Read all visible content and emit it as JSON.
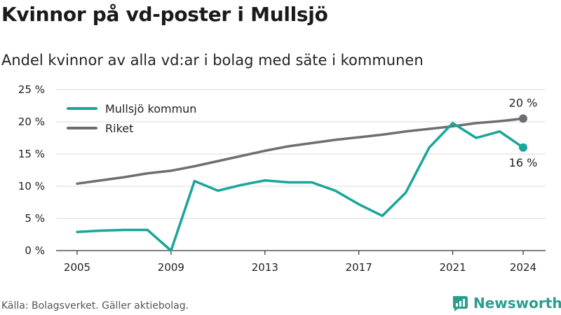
{
  "title": "Kvinnor på vd-poster i Mullsjö",
  "subtitle": "Andel kvinnor av alla vd:ar i bolag med säte i kommunen",
  "source": "Källa: Bolagsverket. Gäller aktiebolag.",
  "brand": {
    "name": "Newsworthy",
    "icon": "newsworthy-logo-icon"
  },
  "colors": {
    "mullsjo": "#18a59b",
    "riket": "#6e6d73",
    "grid": "#d9d9d9",
    "axis": "#333333"
  },
  "chart_data": {
    "type": "line",
    "x": [
      2005,
      2006,
      2007,
      2008,
      2009,
      2010,
      2011,
      2012,
      2013,
      2014,
      2015,
      2016,
      2017,
      2018,
      2019,
      2020,
      2021,
      2022,
      2023,
      2024
    ],
    "series": [
      {
        "name": "Mullsjö kommun",
        "color": "#18a59b",
        "values": [
          2.9,
          3.1,
          3.2,
          3.2,
          0.0,
          10.8,
          9.3,
          10.2,
          10.9,
          10.6,
          10.6,
          9.3,
          7.2,
          5.4,
          9.0,
          16.0,
          19.8,
          17.5,
          18.5,
          16.0
        ]
      },
      {
        "name": "Riket",
        "color": "#6e6d73",
        "values": [
          10.4,
          10.9,
          11.4,
          12.0,
          12.4,
          13.1,
          13.9,
          14.7,
          15.5,
          16.2,
          16.7,
          17.2,
          17.6,
          18.0,
          18.5,
          18.9,
          19.3,
          19.8,
          20.1,
          20.5
        ]
      }
    ],
    "end_labels": [
      {
        "series": "Mullsjö kommun",
        "text": "16 %",
        "position": "below"
      },
      {
        "series": "Riket",
        "text": "20 %",
        "position": "above"
      }
    ],
    "y_ticks": [
      0,
      5,
      10,
      15,
      20,
      25
    ],
    "y_tick_labels": [
      "0 %",
      "5 %",
      "10 %",
      "15 %",
      "20 %",
      "25 %"
    ],
    "x_ticks": [
      2005,
      2009,
      2013,
      2017,
      2021,
      2024
    ],
    "x_tick_labels": [
      "2005",
      "2009",
      "2013",
      "2017",
      "2021",
      "2024"
    ],
    "ylim": [
      0,
      25
    ],
    "xlim": [
      2005,
      2024
    ],
    "grid": "horizontal",
    "legend": {
      "placement": "top-left",
      "entries": [
        "Mullsjö kommun",
        "Riket"
      ]
    }
  }
}
